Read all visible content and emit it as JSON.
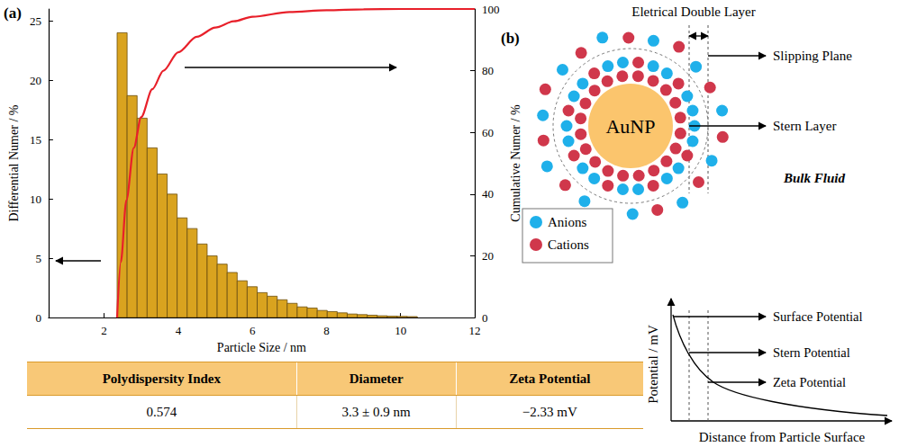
{
  "chart_data": {
    "type": "bar",
    "label": "(a)",
    "x_label": "Particle Size / nm",
    "y_label": "Differential Numer / %",
    "y2_label": "Cumulative Numer / %",
    "bins": [
      2.35,
      2.62,
      2.89,
      3.16,
      3.43,
      3.7,
      3.97,
      4.24,
      4.51,
      4.78,
      5.05,
      5.32,
      5.59,
      5.86,
      6.13,
      6.4,
      6.67,
      6.94,
      7.21,
      7.48,
      7.75,
      8.02,
      8.29,
      8.56,
      8.83,
      9.1,
      9.37,
      9.64,
      9.91,
      10.18,
      10.45
    ],
    "values": [
      24.0,
      18.7,
      16.8,
      14.3,
      12.1,
      10.4,
      8.4,
      7.5,
      6.2,
      5.2,
      4.5,
      3.8,
      3.1,
      2.6,
      2.1,
      1.8,
      1.5,
      1.2,
      0.9,
      0.8,
      0.6,
      0.5,
      0.4,
      0.3,
      0.25,
      0.2,
      0.15,
      0.12,
      0.1,
      0.08
    ],
    "color": "#d9a31f",
    "series": [
      {
        "type": "line",
        "axis": "y2",
        "color": "#e8202a",
        "x": [
          2.35,
          2.45,
          2.6,
          2.8,
          3.0,
          3.3,
          3.6,
          4.0,
          4.5,
          5.0,
          5.5,
          6.0,
          7.0,
          8.0,
          9.0,
          10.0,
          12.0
        ],
        "values": [
          0,
          18,
          38,
          55,
          65,
          74,
          80,
          86,
          91,
          94,
          96,
          97.5,
          99,
          99.6,
          99.9,
          100,
          100
        ]
      }
    ],
    "xlim": [
      0.5,
      12
    ],
    "xticks": [
      2,
      4,
      6,
      8,
      10,
      12
    ],
    "ylim": [
      0,
      26
    ],
    "yticks": [
      0,
      5,
      10,
      15,
      20,
      25
    ],
    "y2lim": [
      0,
      100
    ],
    "y2ticks": [
      0,
      20,
      40,
      60,
      80,
      100
    ],
    "grid": false
  },
  "table": {
    "header": [
      "Polydispersity Index",
      "Diameter",
      "Zeta Potential"
    ],
    "rows": [
      [
        "0.574",
        "3.3 ± 0.9 nm",
        "−2.33 mV"
      ]
    ]
  },
  "diagram": {
    "label": "(b)",
    "double_layer": "Eletrical Double Layer",
    "slipping_plane": "Slipping Plane",
    "stern_layer": "Stern Layer",
    "particle": "AuNP",
    "bulk": "Bulk Fluid",
    "ions": [
      {
        "name": "Anions",
        "color": "#1fb0ea"
      },
      {
        "name": "Cations",
        "color": "#d0374b"
      }
    ],
    "plot": {
      "y_label": "Potential / mV",
      "x_label": "Distance from Particle Surface",
      "annotations": [
        "Surface Potential",
        "Stern Potential",
        "Zeta Potential"
      ]
    }
  }
}
